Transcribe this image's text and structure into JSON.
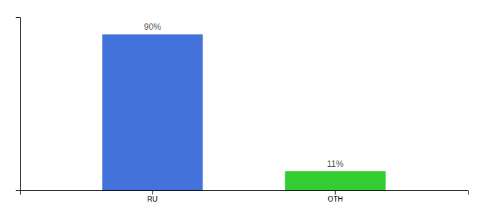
{
  "chart_data": {
    "type": "bar",
    "categories": [
      "RU",
      "OTH"
    ],
    "values": [
      90,
      11
    ],
    "value_labels": [
      "90%",
      "11%"
    ],
    "data_labels": true,
    "colors": [
      "#4472db",
      "#33cc33"
    ],
    "ylim": [
      0,
      100
    ],
    "tick_labels": "x"
  }
}
